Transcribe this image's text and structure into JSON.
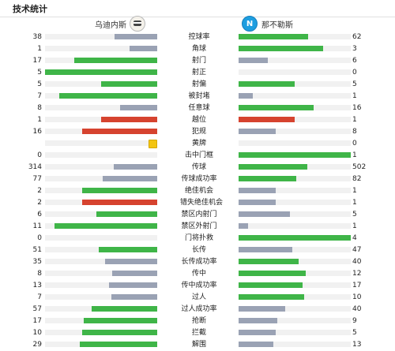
{
  "header": {
    "title": "技术统计"
  },
  "teams": {
    "home": {
      "name": "乌迪内斯"
    },
    "away": {
      "name": "那不勒斯",
      "logo_letter": "N"
    }
  },
  "colors": {
    "green": "#3fb548",
    "gray": "#9aa2b4",
    "red": "#d6432f",
    "yellow": "#f3c511"
  },
  "stats": [
    {
      "label": "控球率",
      "home": "38",
      "away": "62",
      "home_frac": 0.38,
      "away_frac": 0.62,
      "home_color": "gray",
      "away_color": "green"
    },
    {
      "label": "角球",
      "home": "1",
      "away": "3",
      "home_frac": 0.25,
      "away_frac": 0.75,
      "home_color": "gray",
      "away_color": "green"
    },
    {
      "label": "射门",
      "home": "17",
      "away": "6",
      "home_frac": 0.74,
      "away_frac": 0.26,
      "home_color": "green",
      "away_color": "gray"
    },
    {
      "label": "射正",
      "home": "5",
      "away": "0",
      "home_frac": 1.0,
      "away_frac": 0.0,
      "home_color": "green",
      "away_color": "gray"
    },
    {
      "label": "射偏",
      "home": "5",
      "away": "5",
      "home_frac": 0.5,
      "away_frac": 0.5,
      "home_color": "green",
      "away_color": "green"
    },
    {
      "label": "被封堵",
      "home": "7",
      "away": "1",
      "home_frac": 0.875,
      "away_frac": 0.125,
      "home_color": "green",
      "away_color": "gray"
    },
    {
      "label": "任意球",
      "home": "8",
      "away": "16",
      "home_frac": 0.333,
      "away_frac": 0.667,
      "home_color": "gray",
      "away_color": "green"
    },
    {
      "label": "越位",
      "home": "1",
      "away": "1",
      "home_frac": 0.5,
      "away_frac": 0.5,
      "home_color": "red",
      "away_color": "red"
    },
    {
      "label": "犯规",
      "home": "16",
      "away": "8",
      "home_frac": 0.667,
      "away_frac": 0.333,
      "home_color": "red",
      "away_color": "gray"
    },
    {
      "label": "黄牌",
      "home": "",
      "away": "0",
      "home_frac": 0.0,
      "away_frac": 0.0,
      "home_color": "yellow",
      "away_color": "gray",
      "home_card": true
    },
    {
      "label": "击中门框",
      "home": "0",
      "away": "1",
      "home_frac": 0.0,
      "away_frac": 1.0,
      "home_color": "gray",
      "away_color": "green"
    },
    {
      "label": "传球",
      "home": "314",
      "away": "502",
      "home_frac": 0.385,
      "away_frac": 0.615,
      "home_color": "gray",
      "away_color": "green"
    },
    {
      "label": "传球成功率",
      "home": "77",
      "away": "82",
      "home_frac": 0.484,
      "away_frac": 0.516,
      "home_color": "gray",
      "away_color": "green"
    },
    {
      "label": "绝佳机会",
      "home": "2",
      "away": "1",
      "home_frac": 0.667,
      "away_frac": 0.333,
      "home_color": "green",
      "away_color": "gray"
    },
    {
      "label": "错失绝佳机会",
      "home": "2",
      "away": "1",
      "home_frac": 0.667,
      "away_frac": 0.333,
      "home_color": "red",
      "away_color": "gray"
    },
    {
      "label": "禁区内射门",
      "home": "6",
      "away": "5",
      "home_frac": 0.545,
      "away_frac": 0.455,
      "home_color": "green",
      "away_color": "gray"
    },
    {
      "label": "禁区外射门",
      "home": "11",
      "away": "1",
      "home_frac": 0.917,
      "away_frac": 0.083,
      "home_color": "green",
      "away_color": "gray"
    },
    {
      "label": "门将扑救",
      "home": "0",
      "away": "4",
      "home_frac": 0.0,
      "away_frac": 1.0,
      "home_color": "gray",
      "away_color": "green"
    },
    {
      "label": "长传",
      "home": "51",
      "away": "47",
      "home_frac": 0.52,
      "away_frac": 0.48,
      "home_color": "green",
      "away_color": "gray"
    },
    {
      "label": "长传成功率",
      "home": "35",
      "away": "40",
      "home_frac": 0.467,
      "away_frac": 0.533,
      "home_color": "gray",
      "away_color": "green"
    },
    {
      "label": "传中",
      "home": "8",
      "away": "12",
      "home_frac": 0.4,
      "away_frac": 0.6,
      "home_color": "gray",
      "away_color": "green"
    },
    {
      "label": "传中成功率",
      "home": "13",
      "away": "17",
      "home_frac": 0.433,
      "away_frac": 0.567,
      "home_color": "gray",
      "away_color": "green"
    },
    {
      "label": "过人",
      "home": "7",
      "away": "10",
      "home_frac": 0.412,
      "away_frac": 0.588,
      "home_color": "gray",
      "away_color": "green"
    },
    {
      "label": "过人成功率",
      "home": "57",
      "away": "40",
      "home_frac": 0.588,
      "away_frac": 0.412,
      "home_color": "green",
      "away_color": "gray"
    },
    {
      "label": "抢断",
      "home": "17",
      "away": "9",
      "home_frac": 0.654,
      "away_frac": 0.346,
      "home_color": "green",
      "away_color": "gray"
    },
    {
      "label": "拦截",
      "home": "10",
      "away": "5",
      "home_frac": 0.667,
      "away_frac": 0.333,
      "home_color": "green",
      "away_color": "gray"
    },
    {
      "label": "解围",
      "home": "29",
      "away": "13",
      "home_frac": 0.69,
      "away_frac": 0.31,
      "home_color": "green",
      "away_color": "gray"
    }
  ]
}
